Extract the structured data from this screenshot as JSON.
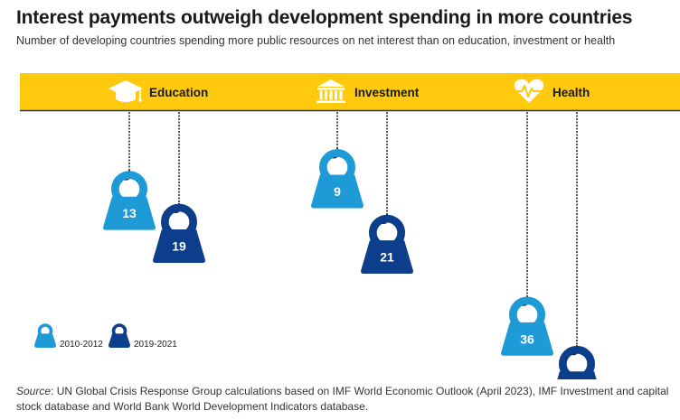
{
  "title": "Interest payments outweigh development spending in more countries",
  "subtitle": "Number of developing countries spending more public resources on net interest than on education, investment or health",
  "source": {
    "label": "Source",
    "text": ": UN Global Crisis Response Group calculations based on IMF World Economic Outlook (April 2023), IMF Investment and capital stock database and World Bank World Development Indicators database."
  },
  "colors": {
    "band": "#FFC90E",
    "band_line": "#333333",
    "period_1": "#1E9BD7",
    "period_2": "#0D3E8C",
    "chain": "#555555",
    "text_light": "#ffffff"
  },
  "chart_data": {
    "type": "bar",
    "title": "Interest payments outweigh development spending in more countries",
    "subtitle": "Number of developing countries spending more public resources on net interest than on education, investment or health",
    "categories": [
      "Education",
      "Investment",
      "Health"
    ],
    "category_icons": [
      "graduation-cap-icon",
      "bank-building-icon",
      "heart-pulse-icon"
    ],
    "series": [
      {
        "name": "2010-2012",
        "values": [
          13,
          9,
          36
        ]
      },
      {
        "name": "2019-2021",
        "values": [
          19,
          21,
          45
        ]
      }
    ],
    "xlabel": "",
    "ylabel": "Number of developing countries",
    "ylim": [
      0,
      50
    ],
    "legend": "bottom-left"
  }
}
